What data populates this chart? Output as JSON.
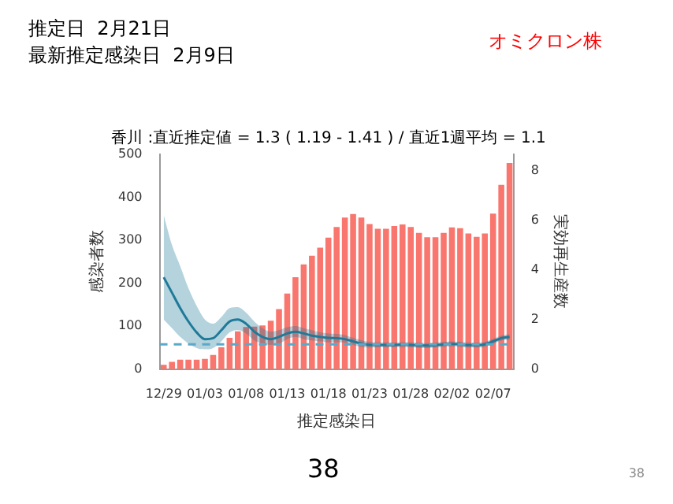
{
  "chart_data": {
    "type": "bar",
    "title": "香川 :直近推定値 = 1.3 ( 1.19 - 1.41 ) / 直近1週平均 = 1.1",
    "xlabel": "推定感染日",
    "ylabel": "感染者数",
    "y2label": "実効再生産数",
    "annotations": [
      "推定日  2月21日",
      "最新推定感染日  2月9日",
      "オミクロン株",
      "38",
      "38"
    ],
    "categories": [
      "12/29",
      null,
      null,
      null,
      null,
      "01/03",
      null,
      null,
      null,
      null,
      "01/08",
      null,
      null,
      null,
      null,
      "01/13",
      null,
      null,
      null,
      null,
      "01/18",
      null,
      null,
      null,
      null,
      "01/23",
      null,
      null,
      null,
      null,
      "01/28",
      null,
      null,
      null,
      null,
      "02/02",
      null,
      null,
      null,
      null,
      "02/07",
      null,
      null
    ],
    "series": [
      {
        "color": "#f8766d",
        "values": [
          10,
          17,
          22,
          22,
          22,
          24,
          33,
          51,
          73,
          88,
          98,
          99,
          102,
          113,
          140,
          176,
          214,
          244,
          264,
          283,
          306,
          331,
          353,
          361,
          353,
          338,
          327,
          327,
          333,
          337,
          331,
          317,
          307,
          307,
          317,
          330,
          328,
          316,
          308,
          316,
          362,
          429,
          480
        ]
      },
      {
        "type": "line",
        "axis": "y2",
        "color": "#1f7a99",
        "values": [
          3.7,
          3.08,
          2.46,
          1.92,
          1.48,
          1.21,
          1.25,
          1.57,
          1.92,
          2.0,
          1.83,
          1.51,
          1.3,
          1.21,
          1.3,
          1.44,
          1.51,
          1.44,
          1.35,
          1.3,
          1.26,
          1.25,
          1.21,
          1.12,
          1.03,
          0.98,
          0.98,
          0.98,
          0.98,
          0.99,
          0.98,
          0.96,
          0.95,
          0.97,
          1.0,
          1.02,
          1.0,
          0.97,
          0.97,
          1.0,
          1.12,
          1.25,
          1.3
        ],
        "lower": [
          2.0,
          1.65,
          1.3,
          1.03,
          0.85,
          0.8,
          0.85,
          1.12,
          1.48,
          1.57,
          1.44,
          1.16,
          1.03,
          0.98,
          1.03,
          1.21,
          1.3,
          1.21,
          1.16,
          1.12,
          1.08,
          1.08,
          1.07,
          0.98,
          0.9,
          0.87,
          0.88,
          0.88,
          0.88,
          0.89,
          0.88,
          0.86,
          0.85,
          0.87,
          0.9,
          0.92,
          0.9,
          0.87,
          0.87,
          0.9,
          1.02,
          1.15,
          1.19
        ],
        "upper": [
          6.2,
          5.0,
          4.15,
          3.26,
          2.55,
          2.0,
          1.83,
          2.1,
          2.46,
          2.5,
          2.28,
          1.92,
          1.65,
          1.51,
          1.57,
          1.69,
          1.74,
          1.65,
          1.57,
          1.48,
          1.44,
          1.42,
          1.37,
          1.26,
          1.17,
          1.1,
          1.08,
          1.08,
          1.08,
          1.09,
          1.08,
          1.06,
          1.05,
          1.07,
          1.1,
          1.12,
          1.1,
          1.07,
          1.07,
          1.1,
          1.22,
          1.35,
          1.41
        ]
      }
    ],
    "ylim": [
      0,
      500
    ],
    "yticks": [
      0,
      100,
      200,
      300,
      400,
      500
    ],
    "y2lim": [
      0,
      8.65
    ],
    "y2ticks": [
      0,
      2,
      4,
      6,
      8
    ],
    "ref_lines": [
      {
        "axis": "y2",
        "value": 1,
        "color": "#5aa9c9",
        "line_style": "dashed"
      }
    ],
    "grid": false,
    "legend": false
  }
}
